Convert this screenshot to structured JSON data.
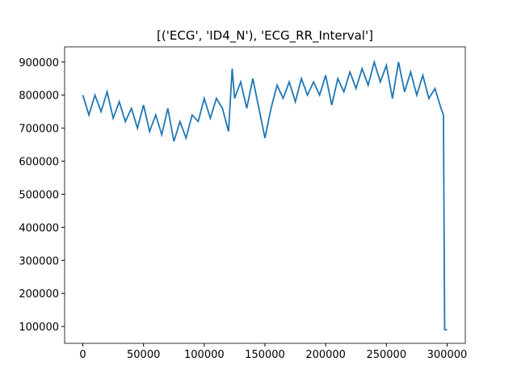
{
  "chart_data": {
    "type": "line",
    "title": "[('ECG', 'ID4_N'), 'ECG_RR_Interval']",
    "x": [
      0,
      5000,
      10000,
      15000,
      20000,
      25000,
      30000,
      35000,
      40000,
      45000,
      50000,
      55000,
      60000,
      65000,
      70000,
      75000,
      80000,
      85000,
      90000,
      95000,
      100000,
      105000,
      110000,
      115000,
      120000,
      123000,
      125000,
      130000,
      135000,
      140000,
      145000,
      150000,
      155000,
      160000,
      165000,
      170000,
      175000,
      180000,
      185000,
      190000,
      195000,
      200000,
      205000,
      210000,
      215000,
      220000,
      225000,
      230000,
      235000,
      240000,
      245000,
      250000,
      255000,
      260000,
      265000,
      270000,
      275000,
      280000,
      285000,
      290000,
      295000,
      297000,
      298000,
      300000
    ],
    "series": [
      {
        "color": "#1f77b4",
        "values": [
          800000,
          740000,
          800000,
          750000,
          810000,
          730000,
          780000,
          720000,
          760000,
          700000,
          770000,
          690000,
          740000,
          680000,
          760000,
          660000,
          720000,
          670000,
          740000,
          720000,
          790000,
          730000,
          790000,
          760000,
          690000,
          880000,
          790000,
          840000,
          760000,
          850000,
          760000,
          670000,
          760000,
          830000,
          790000,
          840000,
          780000,
          850000,
          800000,
          840000,
          800000,
          860000,
          770000,
          850000,
          810000,
          870000,
          820000,
          880000,
          830000,
          900000,
          840000,
          890000,
          790000,
          900000,
          810000,
          870000,
          800000,
          860000,
          790000,
          820000,
          760000,
          740000,
          90000,
          90000
        ]
      }
    ],
    "xlim": [
      -15000,
      315000
    ],
    "xticks": [
      0,
      50000,
      100000,
      150000,
      200000,
      250000,
      300000
    ],
    "ylim": [
      49000,
      946000
    ],
    "yticks": [
      100000,
      200000,
      300000,
      400000,
      500000,
      600000,
      700000,
      800000,
      900000
    ]
  }
}
